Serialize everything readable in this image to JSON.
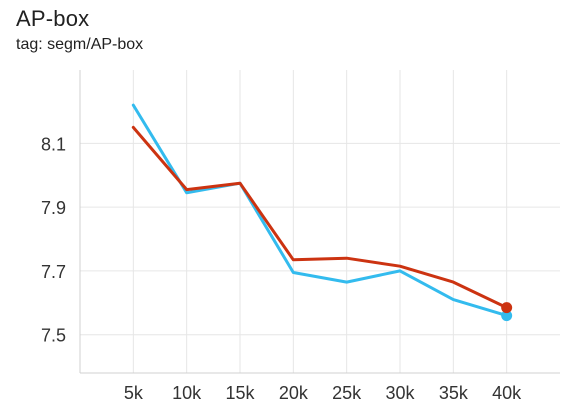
{
  "header": {
    "title": "AP-box",
    "tag": "tag: segm/AP-box"
  },
  "chart_data": {
    "type": "line",
    "title": "AP-box",
    "subtitle": "tag: segm/AP-box",
    "xlabel": "",
    "ylabel": "",
    "x": [
      5000,
      10000,
      15000,
      20000,
      25000,
      30000,
      35000,
      40000
    ],
    "x_tick_labels": [
      "5k",
      "10k",
      "15k",
      "20k",
      "25k",
      "30k",
      "35k",
      "40k"
    ],
    "y_ticks": [
      7.5,
      7.7,
      7.9,
      8.1
    ],
    "y_tick_labels": [
      "7.5",
      "7.7",
      "7.9",
      "8.1"
    ],
    "xlim": [
      0,
      45000
    ],
    "ylim": [
      7.38,
      8.33
    ],
    "grid": true,
    "series": [
      {
        "values": [
          8.22,
          7.945,
          7.975,
          7.695,
          7.665,
          7.7,
          7.61,
          7.56
        ],
        "color": "#33bbee"
      },
      {
        "values": [
          8.15,
          7.955,
          7.975,
          7.735,
          7.74,
          7.715,
          7.665,
          7.585
        ],
        "color": "#cc3311"
      }
    ]
  }
}
